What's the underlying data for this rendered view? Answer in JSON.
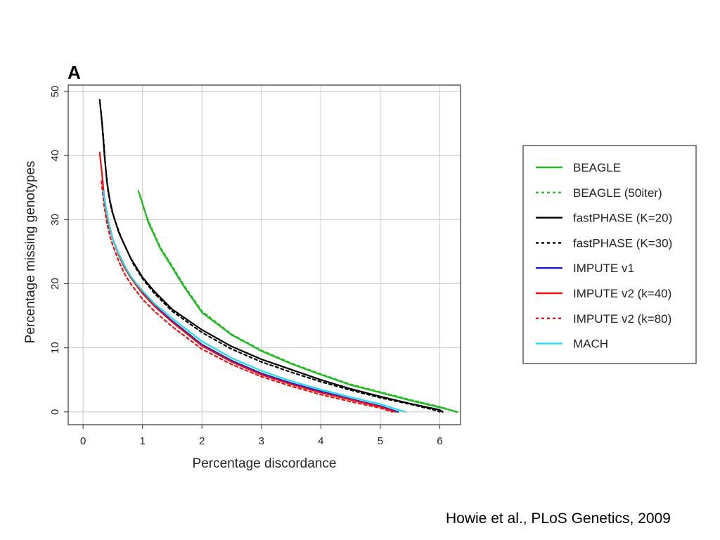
{
  "panel_label": "A",
  "citation": "Howie et al., PLoS Genetics, 2009",
  "chart_data": {
    "type": "line",
    "xlabel": "Percentage discordance",
    "ylabel": "Percentage missing genotypes",
    "xlim": [
      -0.25,
      6.35
    ],
    "ylim": [
      -2,
      51
    ],
    "xticks": [
      0,
      1,
      2,
      3,
      4,
      5,
      6
    ],
    "yticks": [
      0,
      10,
      20,
      30,
      40,
      50
    ],
    "grid": true,
    "legend": "right",
    "series": [
      {
        "name": "BEAGLE",
        "color": "#22bb22",
        "dash": "solid",
        "x": [
          0.95,
          1.0,
          1.05,
          1.1,
          1.2,
          1.3,
          1.5,
          1.7,
          2.0,
          2.5,
          3.0,
          3.5,
          4.0,
          4.5,
          5.0,
          5.5,
          6.0,
          6.3
        ],
        "y": [
          34,
          32.5,
          31,
          29.5,
          27.5,
          25.5,
          22.5,
          19.5,
          15.5,
          12,
          9.5,
          7.5,
          5.8,
          4.2,
          3.0,
          1.8,
          0.7,
          0
        ]
      },
      {
        "name": "BEAGLE (50iter)",
        "color": "#22bb22",
        "dash": "dotted",
        "x": [
          0.93,
          0.98,
          1.03,
          1.1,
          1.2,
          1.3,
          1.5,
          1.7,
          2.0,
          2.5,
          3.0,
          3.5,
          4.0,
          4.5,
          5.0,
          5.5,
          6.0,
          6.28
        ],
        "y": [
          34.5,
          33,
          31.5,
          29.8,
          27.7,
          25.7,
          22.7,
          19.7,
          15.7,
          12.1,
          9.6,
          7.6,
          5.9,
          4.3,
          3.1,
          1.9,
          0.8,
          0
        ]
      },
      {
        "name": "fastPHASE (K=20)",
        "color": "#000000",
        "dash": "solid",
        "x": [
          0.28,
          0.32,
          0.36,
          0.4,
          0.45,
          0.5,
          0.6,
          0.7,
          0.8,
          1.0,
          1.2,
          1.5,
          2.0,
          2.5,
          3.0,
          3.5,
          4.0,
          4.5,
          5.0,
          5.5,
          6.0,
          6.05
        ],
        "y": [
          48.7,
          45,
          40,
          36,
          33,
          31,
          28,
          26,
          24,
          21,
          18.8,
          16,
          12.8,
          10.2,
          8.2,
          6.6,
          5.0,
          3.6,
          2.4,
          1.3,
          0.3,
          0
        ]
      },
      {
        "name": "fastPHASE (K=30)",
        "color": "#000000",
        "dash": "dotted",
        "x": [
          0.3,
          0.34,
          0.38,
          0.42,
          0.48,
          0.55,
          0.65,
          0.75,
          0.85,
          1.0,
          1.2,
          1.5,
          2.0,
          2.5,
          3.0,
          3.5,
          4.0,
          4.5,
          5.0,
          5.5,
          5.95,
          6.0
        ],
        "y": [
          47,
          43,
          38,
          34.5,
          31.5,
          29.5,
          27,
          25,
          23,
          20.8,
          18.5,
          15.7,
          12.4,
          9.8,
          7.8,
          6.2,
          4.7,
          3.4,
          2.2,
          1.2,
          0.2,
          0
        ]
      },
      {
        "name": "IMPUTE v1",
        "color": "#1a1adb",
        "dash": "solid",
        "x": [
          0.33,
          0.38,
          0.43,
          0.5,
          0.6,
          0.7,
          0.8,
          0.9,
          1.0,
          1.2,
          1.5,
          2.0,
          2.5,
          3.0,
          3.5,
          4.0,
          4.5,
          5.0,
          5.3
        ],
        "y": [
          35,
          32,
          29.5,
          27,
          24.5,
          22.5,
          21,
          19.8,
          18.6,
          16.6,
          14.2,
          10.5,
          8.0,
          6.0,
          4.5,
          3.2,
          2.0,
          0.9,
          0
        ]
      },
      {
        "name": "IMPUTE v2 (k=40)",
        "color": "#ee1111",
        "dash": "solid",
        "x": [
          0.28,
          0.32,
          0.36,
          0.4,
          0.45,
          0.5,
          0.6,
          0.7,
          0.8,
          0.9,
          1.0,
          1.2,
          1.5,
          2.0,
          2.5,
          3.0,
          3.5,
          4.0,
          4.5,
          5.0,
          5.25
        ],
        "y": [
          40.5,
          37,
          33,
          30.5,
          28.5,
          27,
          24.5,
          22.5,
          21,
          19.7,
          18.5,
          16.5,
          14,
          10.3,
          7.8,
          5.8,
          4.3,
          3.0,
          1.9,
          0.8,
          0
        ]
      },
      {
        "name": "IMPUTE v2 (k=80)",
        "color": "#ee1111",
        "dash": "dotted",
        "x": [
          0.31,
          0.35,
          0.4,
          0.45,
          0.5,
          0.6,
          0.7,
          0.8,
          0.9,
          1.0,
          1.2,
          1.5,
          2.0,
          2.5,
          3.0,
          3.5,
          4.0,
          4.5,
          5.0,
          5.2
        ],
        "y": [
          36,
          32.5,
          29.5,
          27.5,
          26,
          23.5,
          21.5,
          20,
          18.8,
          17.6,
          15.7,
          13.3,
          9.8,
          7.4,
          5.5,
          4.0,
          2.7,
          1.6,
          0.6,
          0
        ]
      },
      {
        "name": "MACH",
        "color": "#22ddee",
        "dash": "solid",
        "x": [
          0.34,
          0.39,
          0.44,
          0.5,
          0.6,
          0.7,
          0.8,
          0.9,
          1.0,
          1.2,
          1.5,
          2.0,
          2.5,
          3.0,
          3.5,
          4.0,
          4.5,
          5.0,
          5.42
        ],
        "y": [
          34.5,
          31.5,
          29.2,
          27,
          24.7,
          22.8,
          21.2,
          20,
          18.9,
          16.9,
          14.6,
          11,
          8.4,
          6.4,
          4.8,
          3.5,
          2.3,
          1.2,
          0
        ]
      }
    ]
  }
}
